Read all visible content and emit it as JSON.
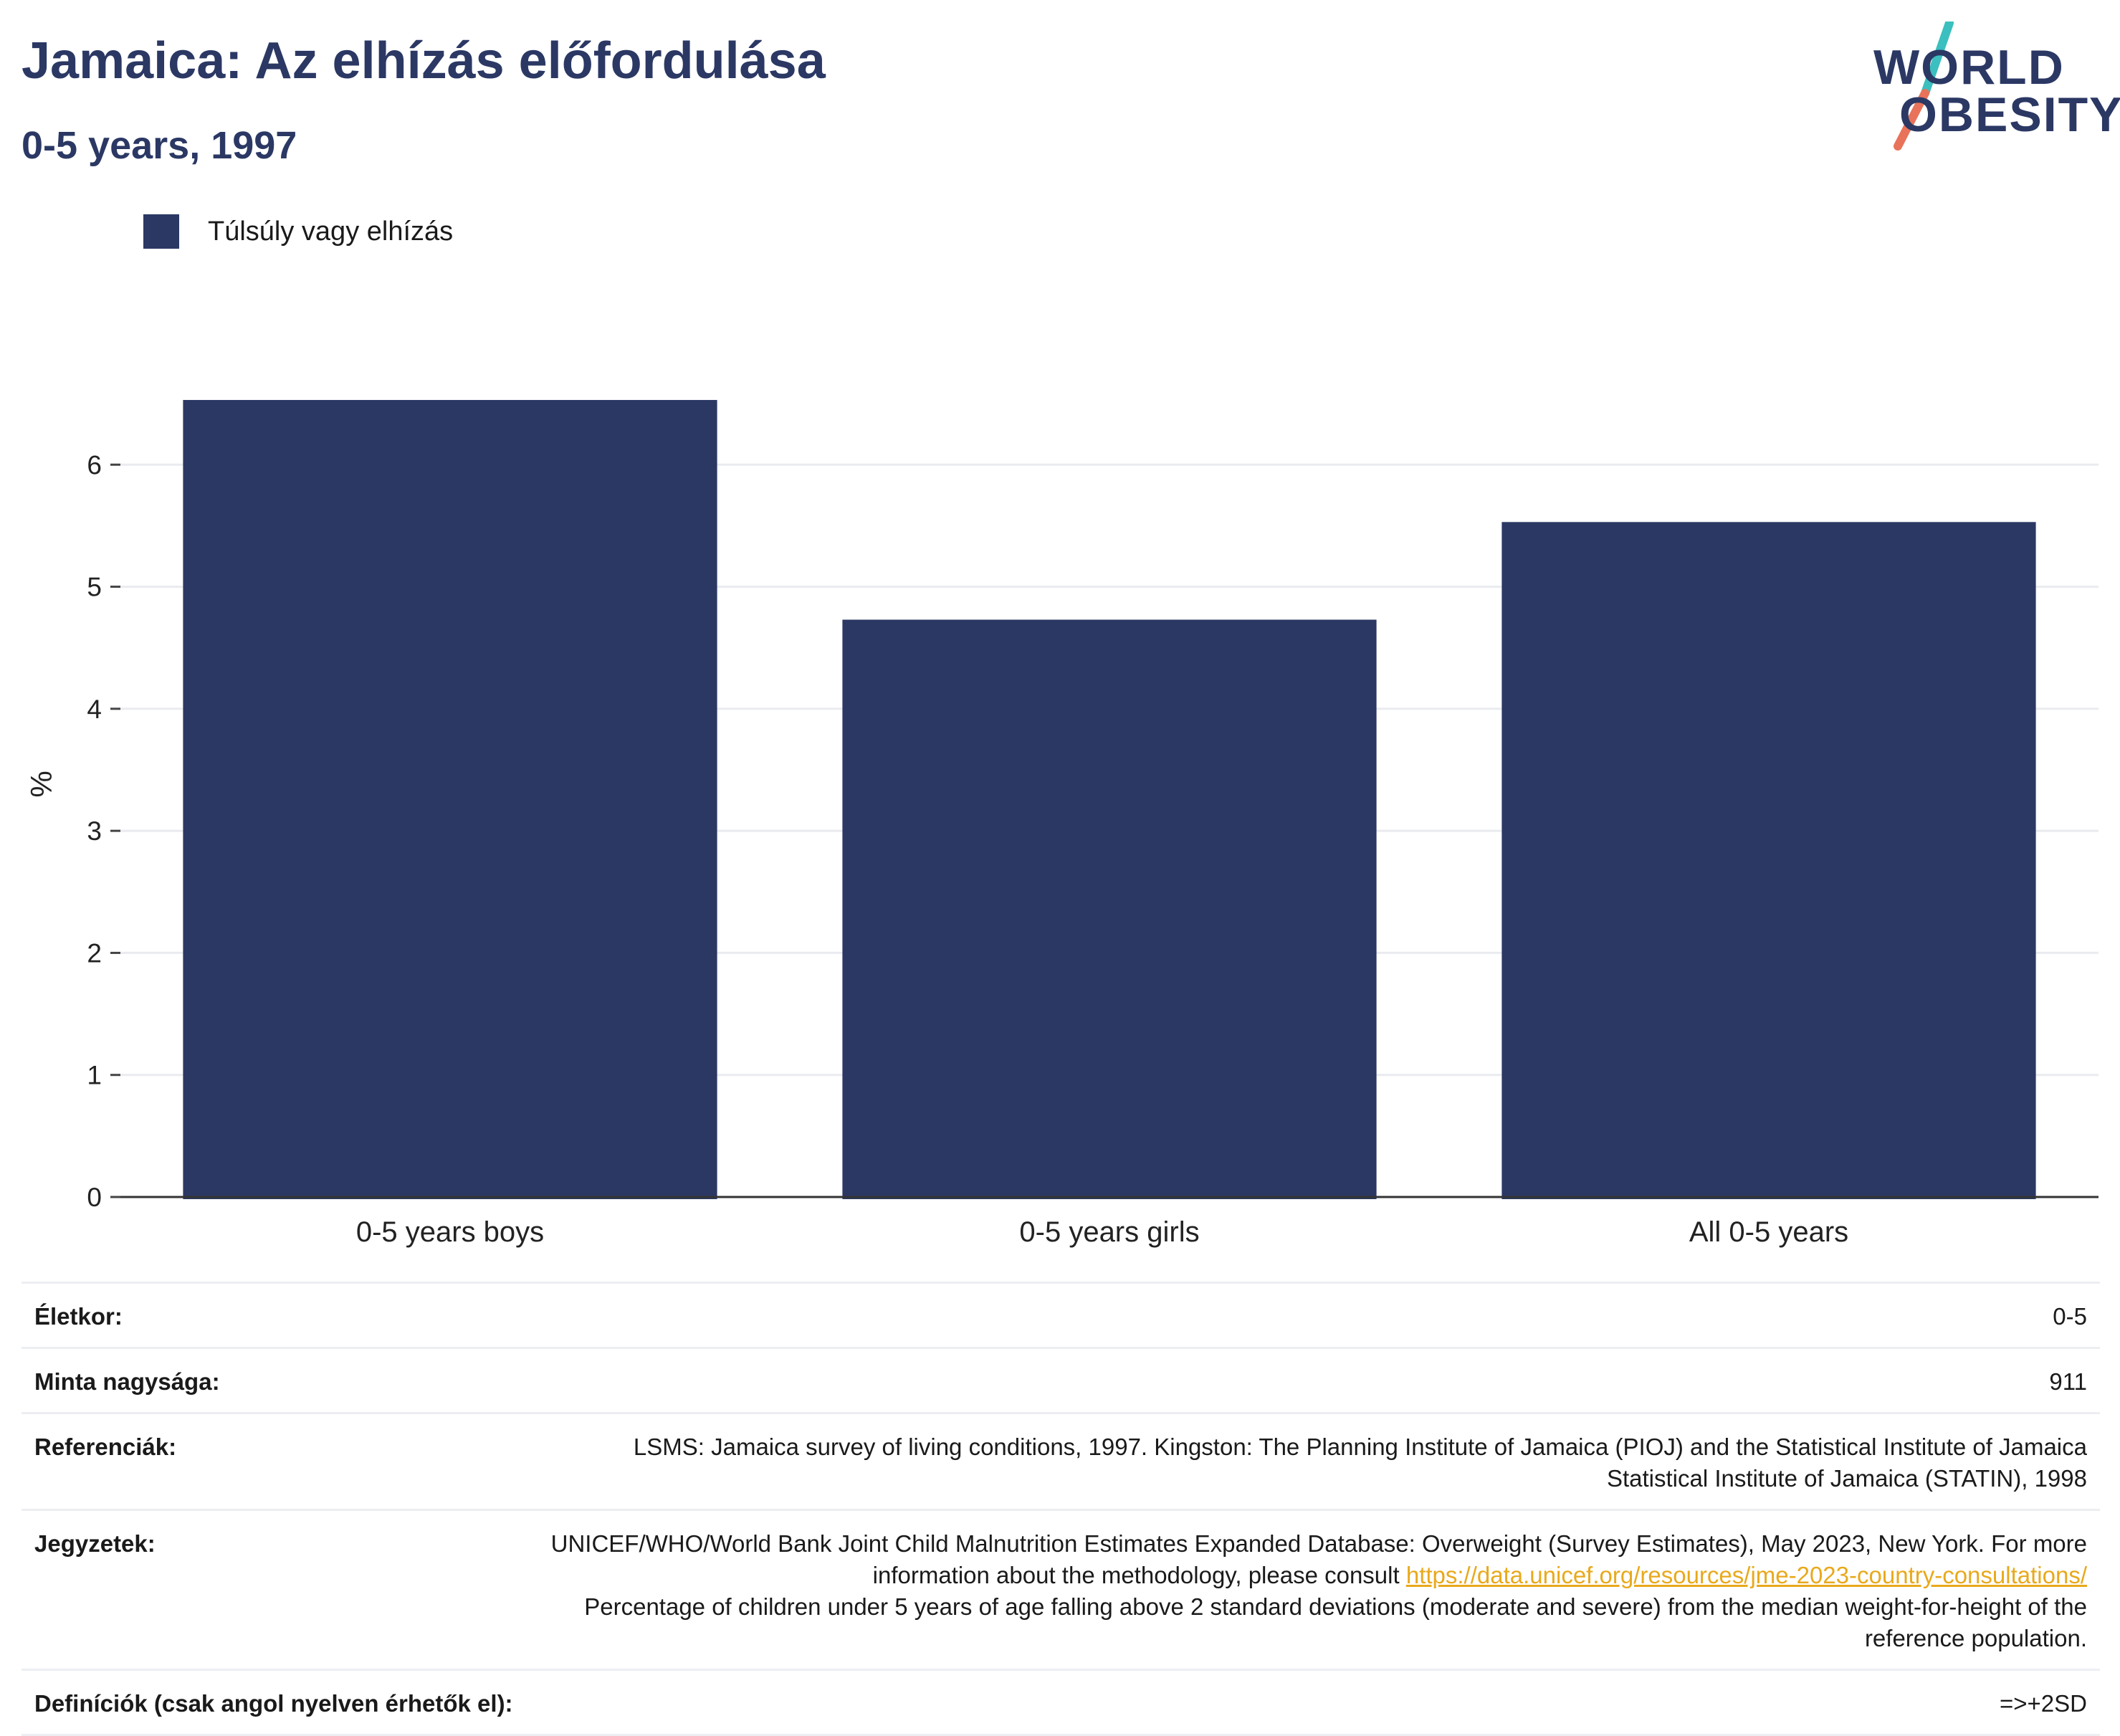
{
  "header": {
    "title": "Jamaica: Az elhízás előfordulása",
    "subtitle": "0-5 years, 1997"
  },
  "logo": {
    "line1": "WORLD",
    "line2": "OBESITY",
    "colors": {
      "text": "#2b3864",
      "slash_top": "#3bbfbf",
      "slash_bottom": "#e8735a"
    }
  },
  "legend": {
    "label": "Túlsúly vagy elhízás",
    "color": "#2b3864"
  },
  "chart_data": {
    "type": "bar",
    "categories": [
      "0-5 years boys",
      "0-5 years girls",
      "All 0-5 years"
    ],
    "series": [
      {
        "name": "Túlsúly vagy elhízás",
        "values": [
          6.53,
          4.73,
          5.53
        ],
        "color": "#2b3864"
      }
    ],
    "title": "",
    "xlabel": "",
    "ylabel": "%",
    "ylim": [
      0,
      7
    ],
    "yticks": [
      0,
      1,
      2,
      3,
      4,
      5,
      6
    ],
    "grid": true,
    "legend_position": "top-left"
  },
  "info": {
    "age_label": "Életkor:",
    "age_value": "0-5",
    "sample_label": "Minta nagysága:",
    "sample_value": "911",
    "references_label": "Referenciák:",
    "references_value_1": "LSMS: Jamaica survey of living conditions, 1997. Kingston: The Planning Institute of Jamaica (PIOJ) and the Statistical Institute of Jamaica",
    "references_value_2": "Statistical Institute of Jamaica (STATIN), 1998",
    "notes_label": "Jegyzetek:",
    "notes_value_1": "UNICEF/WHO/World Bank Joint Child Malnutrition Estimates Expanded Database: Overweight (Survey Estimates), May 2023, New York. For more information about the methodology, please consult",
    "notes_link": "https://data.unicef.org/resources/jme-2023-country-consultations/",
    "notes_value_2": "Percentage of children under 5 years of age falling above 2 standard deviations (moderate and severe) from the median weight-for-height of the reference population.",
    "definitions_label": "Definíciók (csak angol nyelven érhetők el):",
    "definitions_value": "=>+2SD"
  }
}
